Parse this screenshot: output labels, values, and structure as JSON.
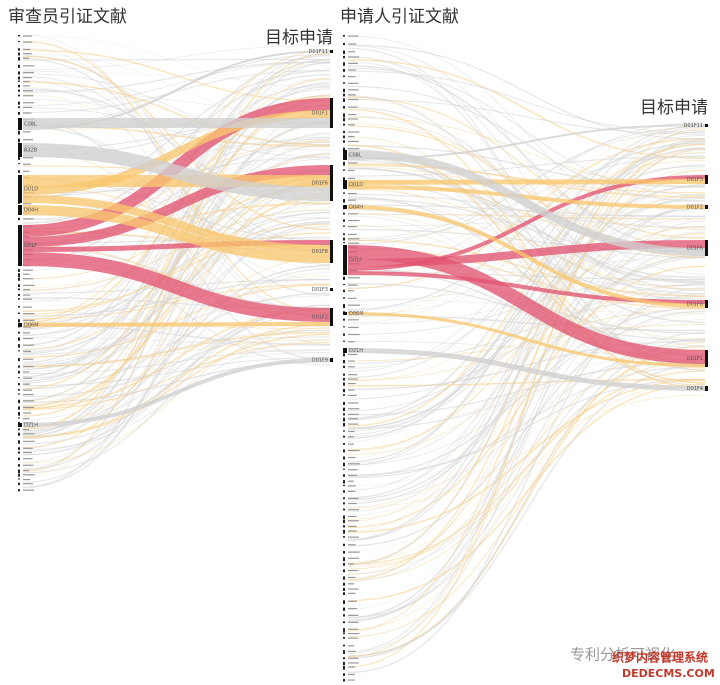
{
  "chart_data": [
    {
      "type": "sankey",
      "title": "审查员引证文献",
      "target_title": "目标申请",
      "sources": [
        "C08L",
        "B32B",
        "D01D",
        "D04H",
        "D01F",
        "D06M",
        "D21H"
      ],
      "targets": [
        "D01F11",
        "D01F1",
        "D01F6",
        "D01F8",
        "D01F3",
        "D01F2",
        "D01F9"
      ],
      "links": [
        {
          "source": 4,
          "target": 1,
          "value": 12,
          "color": "#e25572"
        },
        {
          "source": 4,
          "target": 2,
          "value": 10,
          "color": "#e25572"
        },
        {
          "source": 4,
          "target": 3,
          "value": 5,
          "color": "#e25572"
        },
        {
          "source": 4,
          "target": 5,
          "value": 14,
          "color": "#e25572"
        },
        {
          "source": 2,
          "target": 2,
          "value": 12,
          "color": "#f8c66e"
        },
        {
          "source": 2,
          "target": 1,
          "value": 8,
          "color": "#f8c66e"
        },
        {
          "source": 2,
          "target": 3,
          "value": 8,
          "color": "#f8c66e"
        },
        {
          "source": 3,
          "target": 3,
          "value": 10,
          "color": "#f8c66e"
        },
        {
          "source": 1,
          "target": 2,
          "value": 14,
          "color": "#cfcfcf"
        },
        {
          "source": 0,
          "target": 1,
          "value": 10,
          "color": "#cfcfcf"
        },
        {
          "source": 5,
          "target": 5,
          "value": 4,
          "color": "#f8c66e"
        },
        {
          "source": 6,
          "target": 6,
          "value": 4,
          "color": "#cfcfcf"
        },
        {
          "source": 0,
          "target": 0,
          "value": 2,
          "color": "#cfcfcf"
        }
      ]
    },
    {
      "type": "sankey",
      "title": "申请人引证文献",
      "target_title": "目标申请",
      "sources": [
        "C08L",
        "D01D",
        "D04H",
        "D01F",
        "D06M",
        "D21H"
      ],
      "targets": [
        "D01F11",
        "D01F3",
        "D01F2",
        "D01F6",
        "D01F8",
        "D01F1",
        "D01F4"
      ],
      "links": [
        {
          "source": 3,
          "target": 5,
          "value": 14,
          "color": "#e25572"
        },
        {
          "source": 3,
          "target": 3,
          "value": 8,
          "color": "#e25572"
        },
        {
          "source": 3,
          "target": 1,
          "value": 4,
          "color": "#e25572"
        },
        {
          "source": 3,
          "target": 4,
          "value": 4,
          "color": "#e25572"
        },
        {
          "source": 1,
          "target": 1,
          "value": 5,
          "color": "#f8c66e"
        },
        {
          "source": 1,
          "target": 2,
          "value": 4,
          "color": "#f8c66e"
        },
        {
          "source": 0,
          "target": 3,
          "value": 8,
          "color": "#cfcfcf"
        },
        {
          "source": 2,
          "target": 4,
          "value": 4,
          "color": "#f8c66e"
        },
        {
          "source": 4,
          "target": 5,
          "value": 3,
          "color": "#f8c66e"
        },
        {
          "source": 5,
          "target": 6,
          "value": 5,
          "color": "#cfcfcf"
        },
        {
          "source": 0,
          "target": 0,
          "value": 2,
          "color": "#cfcfcf"
        }
      ]
    }
  ],
  "watermark": {
    "account": "专利分析可视化",
    "site": "织梦内容管理系统",
    "url": "DEDECMS.COM"
  }
}
